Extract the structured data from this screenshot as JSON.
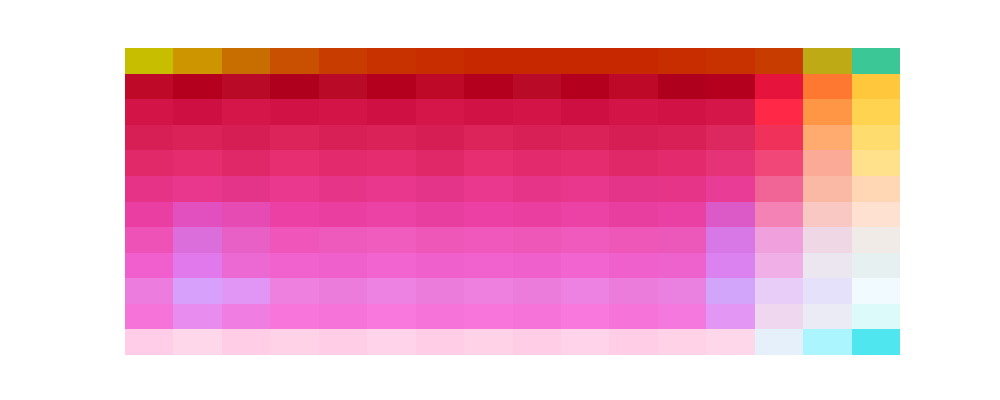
{
  "chart_data": {
    "type": "image",
    "tick_labels": false,
    "cells": [
      [
        [
          200,
          190,
          0
        ],
        [
          205,
          150,
          0
        ],
        [
          200,
          110,
          0
        ],
        [
          200,
          80,
          0
        ],
        [
          200,
          60,
          0
        ],
        [
          200,
          50,
          0
        ],
        [
          200,
          45,
          0
        ],
        [
          200,
          40,
          0
        ],
        [
          200,
          40,
          0
        ],
        [
          200,
          40,
          0
        ],
        [
          200,
          40,
          0
        ],
        [
          200,
          45,
          0
        ],
        [
          200,
          50,
          0
        ],
        [
          200,
          60,
          0
        ],
        [
          190,
          170,
          20
        ],
        [
          60,
          200,
          150
        ]
      ],
      [
        [
          190,
          10,
          40
        ],
        [
          180,
          0,
          30
        ],
        [
          185,
          10,
          40
        ],
        [
          175,
          0,
          30
        ],
        [
          185,
          10,
          40
        ],
        [
          180,
          0,
          30
        ],
        [
          190,
          10,
          40
        ],
        [
          180,
          0,
          30
        ],
        [
          185,
          10,
          40
        ],
        [
          180,
          0,
          30
        ],
        [
          190,
          10,
          40
        ],
        [
          175,
          0,
          30
        ],
        [
          180,
          0,
          30
        ],
        [
          230,
          20,
          60
        ],
        [
          255,
          120,
          50
        ],
        [
          255,
          200,
          60
        ]
      ],
      [
        [
          210,
          20,
          70
        ],
        [
          205,
          15,
          65
        ],
        [
          212,
          22,
          72
        ],
        [
          208,
          18,
          68
        ],
        [
          210,
          20,
          70
        ],
        [
          206,
          16,
          66
        ],
        [
          212,
          22,
          72
        ],
        [
          208,
          18,
          68
        ],
        [
          210,
          20,
          70
        ],
        [
          205,
          15,
          65
        ],
        [
          210,
          20,
          70
        ],
        [
          208,
          18,
          68
        ],
        [
          212,
          22,
          72
        ],
        [
          255,
          40,
          70
        ],
        [
          255,
          150,
          70
        ],
        [
          255,
          210,
          80
        ]
      ],
      [
        [
          215,
          30,
          85
        ],
        [
          218,
          34,
          88
        ],
        [
          214,
          30,
          84
        ],
        [
          220,
          36,
          90
        ],
        [
          216,
          32,
          86
        ],
        [
          218,
          34,
          88
        ],
        [
          214,
          30,
          84
        ],
        [
          220,
          36,
          90
        ],
        [
          216,
          32,
          86
        ],
        [
          218,
          34,
          88
        ],
        [
          214,
          30,
          84
        ],
        [
          216,
          32,
          86
        ],
        [
          220,
          40,
          95
        ],
        [
          240,
          50,
          90
        ],
        [
          255,
          170,
          110
        ],
        [
          255,
          220,
          110
        ]
      ],
      [
        [
          225,
          40,
          105
        ],
        [
          228,
          44,
          110
        ],
        [
          224,
          40,
          104
        ],
        [
          230,
          46,
          112
        ],
        [
          226,
          42,
          108
        ],
        [
          228,
          44,
          110
        ],
        [
          224,
          40,
          104
        ],
        [
          230,
          46,
          112
        ],
        [
          226,
          42,
          108
        ],
        [
          228,
          44,
          110
        ],
        [
          224,
          40,
          104
        ],
        [
          226,
          42,
          108
        ],
        [
          230,
          50,
          118
        ],
        [
          240,
          70,
          120
        ],
        [
          250,
          170,
          150
        ],
        [
          255,
          225,
          140
        ]
      ],
      [
        [
          230,
          50,
          135
        ],
        [
          232,
          55,
          140
        ],
        [
          228,
          52,
          138
        ],
        [
          234,
          56,
          142
        ],
        [
          230,
          52,
          136
        ],
        [
          232,
          55,
          140
        ],
        [
          228,
          52,
          138
        ],
        [
          234,
          56,
          142
        ],
        [
          230,
          52,
          136
        ],
        [
          232,
          55,
          140
        ],
        [
          228,
          52,
          138
        ],
        [
          230,
          52,
          136
        ],
        [
          232,
          60,
          150
        ],
        [
          240,
          100,
          150
        ],
        [
          250,
          185,
          165
        ],
        [
          255,
          215,
          180
        ]
      ],
      [
        [
          235,
          62,
          162
        ],
        [
          225,
          80,
          190
        ],
        [
          230,
          75,
          180
        ],
        [
          236,
          64,
          164
        ],
        [
          234,
          62,
          160
        ],
        [
          236,
          66,
          166
        ],
        [
          232,
          62,
          160
        ],
        [
          236,
          64,
          164
        ],
        [
          234,
          62,
          160
        ],
        [
          236,
          66,
          166
        ],
        [
          232,
          62,
          160
        ],
        [
          234,
          64,
          164
        ],
        [
          220,
          90,
          200
        ],
        [
          245,
          130,
          180
        ],
        [
          250,
          200,
          195
        ],
        [
          255,
          225,
          210
        ]
      ],
      [
        [
          238,
          82,
          182
        ],
        [
          220,
          110,
          220
        ],
        [
          232,
          96,
          198
        ],
        [
          240,
          86,
          186
        ],
        [
          238,
          90,
          188
        ],
        [
          240,
          92,
          190
        ],
        [
          238,
          86,
          184
        ],
        [
          240,
          88,
          188
        ],
        [
          238,
          86,
          184
        ],
        [
          240,
          90,
          188
        ],
        [
          238,
          86,
          184
        ],
        [
          236,
          88,
          186
        ],
        [
          215,
          120,
          230
        ],
        [
          240,
          160,
          220
        ],
        [
          240,
          215,
          230
        ],
        [
          240,
          235,
          230
        ]
      ],
      [
        [
          240,
          95,
          205
        ],
        [
          225,
          120,
          235
        ],
        [
          236,
          105,
          212
        ],
        [
          242,
          98,
          206
        ],
        [
          240,
          96,
          204
        ],
        [
          242,
          100,
          208
        ],
        [
          240,
          96,
          204
        ],
        [
          242,
          98,
          206
        ],
        [
          240,
          96,
          204
        ],
        [
          242,
          100,
          208
        ],
        [
          240,
          96,
          204
        ],
        [
          238,
          98,
          206
        ],
        [
          220,
          130,
          240
        ],
        [
          240,
          175,
          230
        ],
        [
          235,
          230,
          240
        ],
        [
          230,
          240,
          240
        ]
      ],
      [
        [
          236,
          125,
          222
        ],
        [
          215,
          160,
          250
        ],
        [
          225,
          150,
          245
        ],
        [
          238,
          128,
          224
        ],
        [
          236,
          124,
          220
        ],
        [
          238,
          130,
          226
        ],
        [
          236,
          124,
          220
        ],
        [
          238,
          128,
          224
        ],
        [
          236,
          124,
          220
        ],
        [
          238,
          130,
          226
        ],
        [
          236,
          124,
          220
        ],
        [
          234,
          128,
          224
        ],
        [
          210,
          165,
          250
        ],
        [
          232,
          205,
          248
        ],
        [
          230,
          225,
          250
        ],
        [
          240,
          250,
          255
        ]
      ],
      [
        [
          246,
          115,
          218
        ],
        [
          232,
          140,
          240
        ],
        [
          240,
          125,
          226
        ],
        [
          248,
          118,
          220
        ],
        [
          246,
          116,
          218
        ],
        [
          248,
          120,
          222
        ],
        [
          246,
          116,
          218
        ],
        [
          248,
          118,
          220
        ],
        [
          246,
          116,
          218
        ],
        [
          248,
          120,
          222
        ],
        [
          246,
          116,
          218
        ],
        [
          244,
          120,
          222
        ],
        [
          228,
          150,
          245
        ],
        [
          240,
          215,
          240
        ],
        [
          235,
          235,
          245
        ],
        [
          220,
          250,
          250
        ]
      ],
      [
        [
          255,
          205,
          232
        ],
        [
          255,
          215,
          235
        ],
        [
          255,
          205,
          230
        ],
        [
          255,
          210,
          232
        ],
        [
          255,
          205,
          230
        ],
        [
          255,
          212,
          234
        ],
        [
          255,
          206,
          230
        ],
        [
          255,
          210,
          232
        ],
        [
          255,
          205,
          230
        ],
        [
          255,
          212,
          234
        ],
        [
          255,
          206,
          230
        ],
        [
          255,
          210,
          232
        ],
        [
          255,
          215,
          235
        ],
        [
          230,
          240,
          250
        ],
        [
          170,
          245,
          255
        ],
        [
          80,
          230,
          240
        ]
      ]
    ]
  }
}
